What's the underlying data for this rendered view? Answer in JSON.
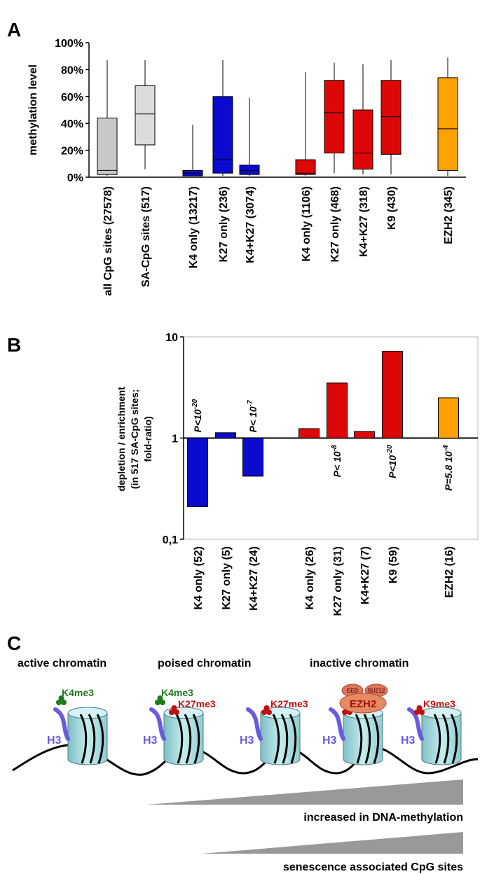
{
  "colors": {
    "gray": "#c8c8c8",
    "gray_light": "#dcdcdc",
    "blue": "#0b0bd0",
    "red": "#dd0707",
    "orange": "#ffa200",
    "histone_purple": "#6a5ae0",
    "green_mark": "#1e7a1e",
    "red_mark": "#c01010",
    "nucleosome": "#a8d8dc",
    "prc2": "#e58a62"
  },
  "panel_letters": {
    "a": "A",
    "b": "B",
    "c": "C"
  },
  "chart_data": [
    {
      "id": "A",
      "type": "box",
      "ylabel": "methylation level",
      "ylim": [
        0,
        100
      ],
      "yticks": [
        "0%",
        "20%",
        "40%",
        "60%",
        "80%",
        "100%"
      ],
      "grid": false,
      "groups": [
        {
          "label": "all CpG sites (27578)",
          "color": "gray",
          "min": 1,
          "q1": 2,
          "median": 5,
          "q3": 44,
          "max": 87
        },
        {
          "label": "SA-CpG sites (517)",
          "color": "gray_light",
          "min": 6,
          "q1": 24,
          "median": 47,
          "q3": 68,
          "max": 87
        },
        {
          "label": "K4 only (13217)",
          "color": "blue",
          "min": 1,
          "q1": 1,
          "median": 3,
          "q3": 5,
          "max": 39
        },
        {
          "label": "K27 only (236)",
          "color": "blue",
          "min": 1,
          "q1": 3,
          "median": 13,
          "q3": 60,
          "max": 87
        },
        {
          "label": "K4+K27 (3074)",
          "color": "blue",
          "min": 1,
          "q1": 2,
          "median": 5,
          "q3": 9,
          "max": 59
        },
        {
          "label": "K4 only (1106)",
          "color": "red",
          "min": 1,
          "q1": 2,
          "median": 3,
          "q3": 13,
          "max": 78
        },
        {
          "label": "K27 only (468)",
          "color": "red",
          "min": 3,
          "q1": 18,
          "median": 48,
          "q3": 72,
          "max": 85
        },
        {
          "label": "K4+K27 (318)",
          "color": "red",
          "min": 2,
          "q1": 6,
          "median": 18,
          "q3": 50,
          "max": 84
        },
        {
          "label": "K9 (430)",
          "color": "red",
          "min": 2,
          "q1": 17,
          "median": 45,
          "q3": 72,
          "max": 87
        },
        {
          "label": "EZH2 (345)",
          "color": "orange",
          "min": 1,
          "q1": 5,
          "median": 36,
          "q3": 74,
          "max": 89
        }
      ]
    },
    {
      "id": "B",
      "type": "bar",
      "scale": "log",
      "ylabel_lines": [
        "depletion / enrichment",
        "(in 517 SA-CpG sites;",
        "fold-ratio)"
      ],
      "ylim": [
        0.1,
        10
      ],
      "yticks": [
        "0,1",
        "1",
        "10"
      ],
      "categories": [
        "K4 only (52)",
        "K27 only (5)",
        "K4+K27 (24)",
        "K4 only (26)",
        "K27 only (31)",
        "K4+K27 (7)",
        "K9 (59)",
        "EZH2 (16)"
      ],
      "values": [
        0.21,
        1.13,
        0.42,
        1.24,
        3.5,
        1.16,
        7.2,
        2.5
      ],
      "colors": [
        "blue",
        "blue",
        "blue",
        "red",
        "red",
        "red",
        "red",
        "orange"
      ],
      "annotations": [
        {
          "index": 0,
          "base": "P<10",
          "exp": "-20"
        },
        {
          "index": 2,
          "base": "P< 10",
          "exp": "-7"
        },
        {
          "index": 4,
          "base": "P< 10",
          "exp": "-8"
        },
        {
          "index": 6,
          "base": "P<10",
          "exp": "-20"
        },
        {
          "index": 7,
          "base": "P=5.8 10",
          "exp": "-4"
        }
      ]
    }
  ],
  "panel_c": {
    "headers": [
      "active chromatin",
      "poised chromatin",
      "inactive chromatin"
    ],
    "h3": "H3",
    "marks": {
      "k4": "K4me3",
      "k27": "K27me3",
      "k9": "K9me3"
    },
    "ezh2": "EZH2",
    "eed": "EED",
    "suz12": "SUZ12",
    "wedge1": "increased in DNA-methylation",
    "wedge2": "senescence associated CpG sites"
  }
}
